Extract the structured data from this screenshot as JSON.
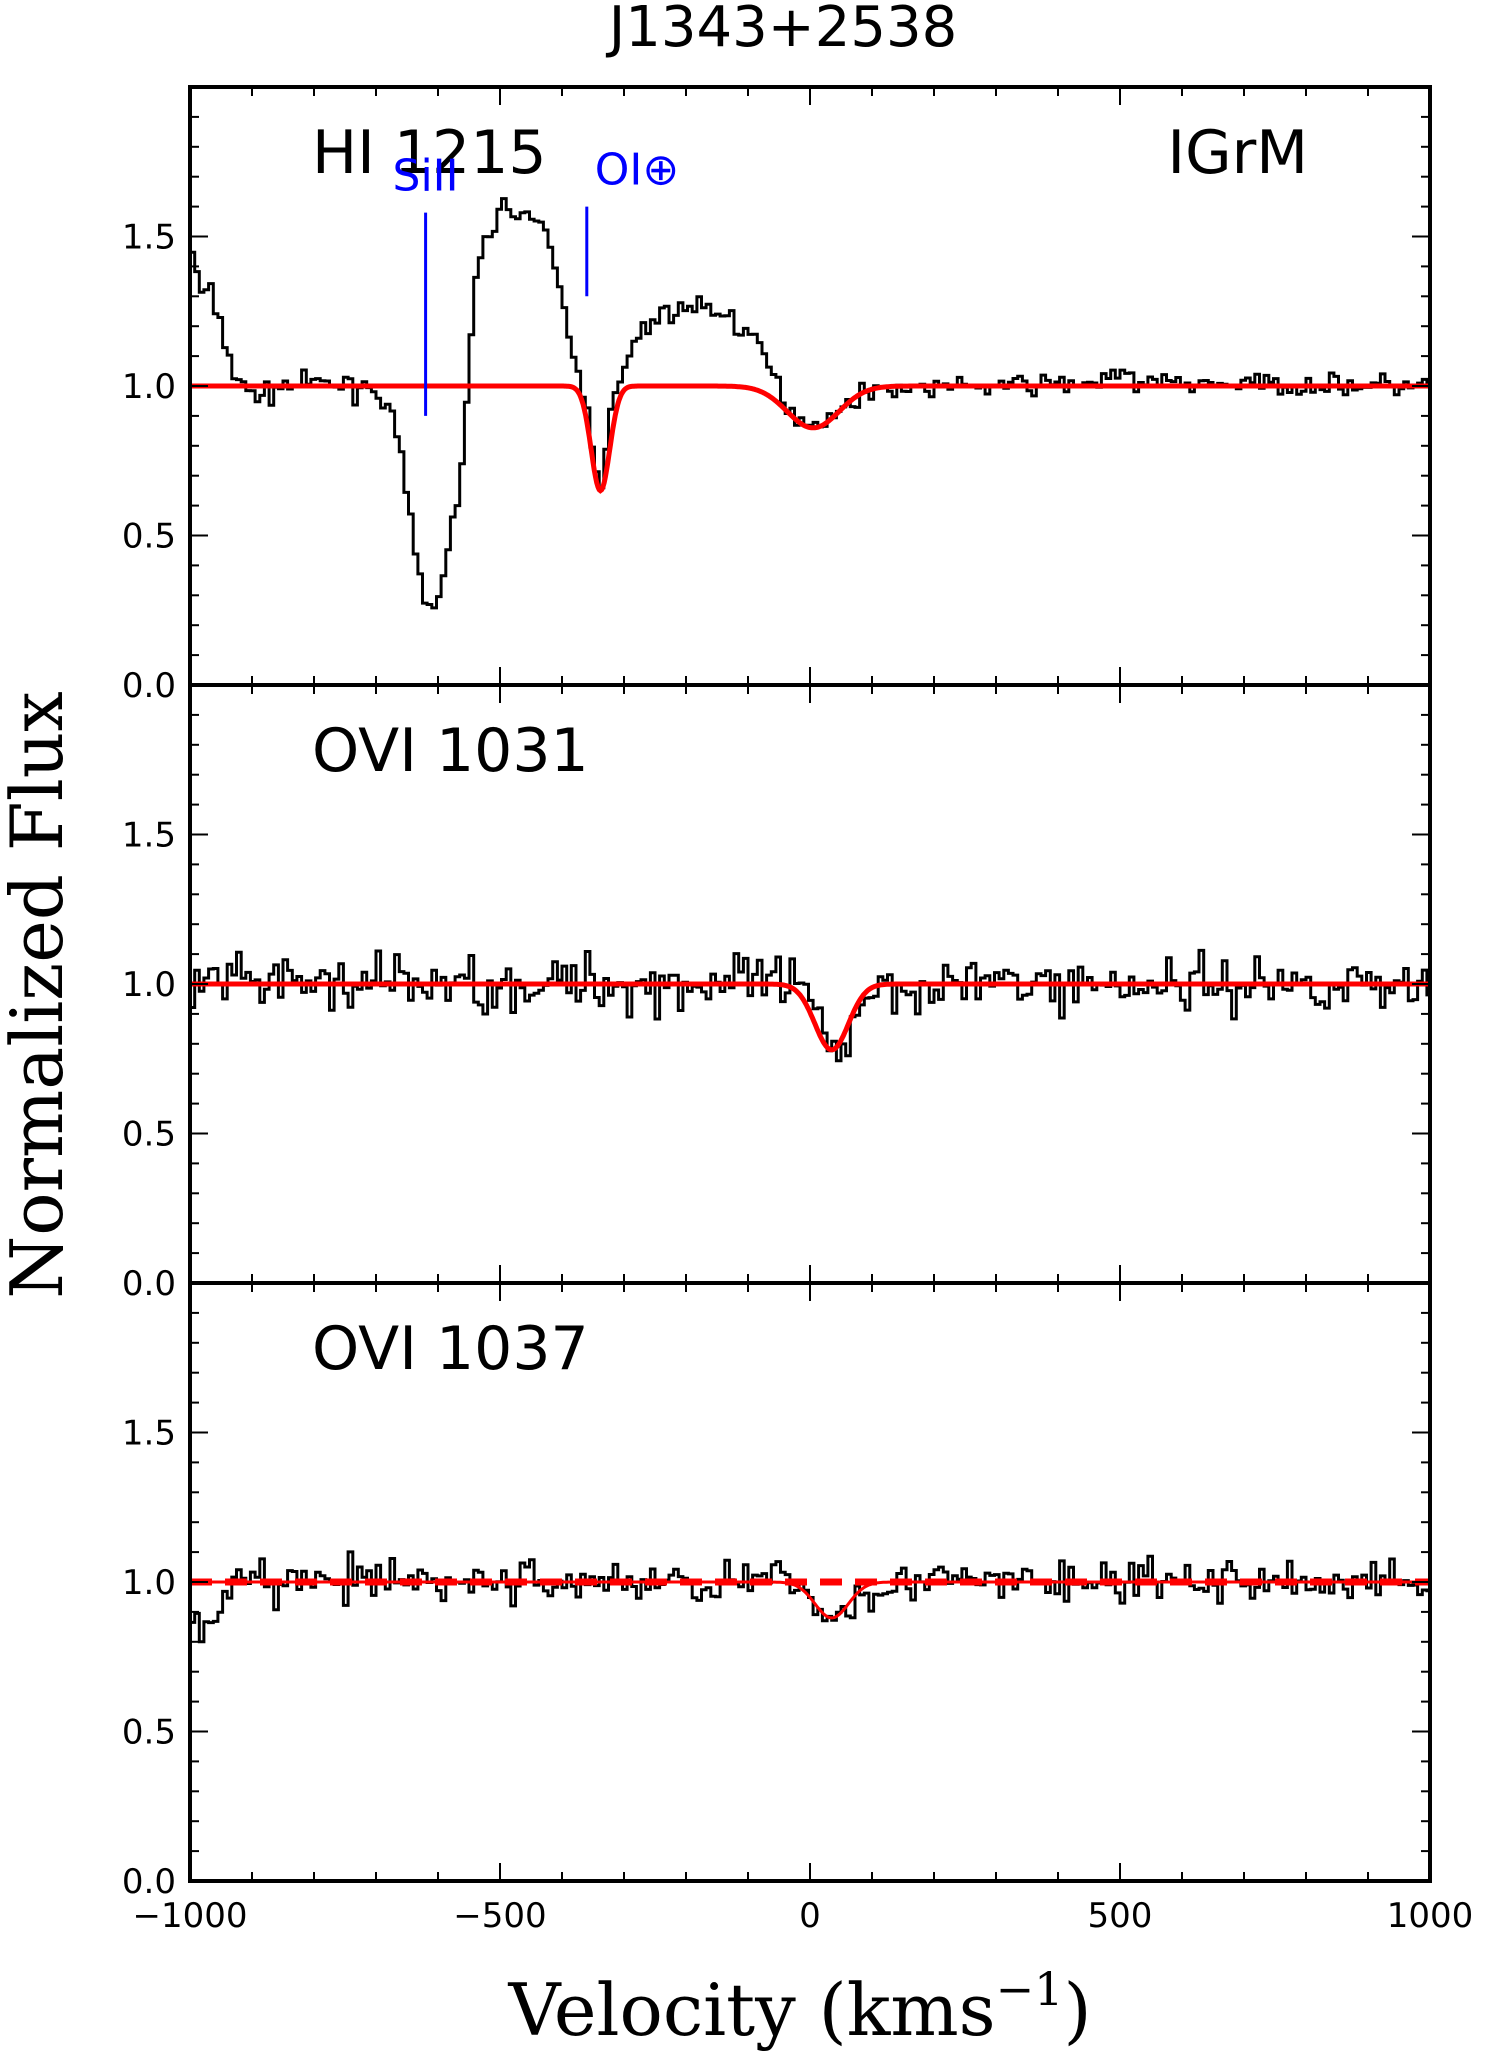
{
  "chart_data": {
    "type": "line",
    "title": "J1343+2538",
    "xlabel": "Velocity (kms",
    "xlabel_exp": "−1",
    "xlabel_close": ")",
    "ylabel": "Normalized Flux",
    "xlim": [
      -1000,
      1000
    ],
    "ylim": [
      0.0,
      2.0
    ],
    "xticks": [
      -1000,
      -500,
      0,
      500,
      1000
    ],
    "xtick_labels": [
      "−1000",
      "−500",
      "0",
      "500",
      "1000"
    ],
    "yticks": [
      0.0,
      0.5,
      1.0,
      1.5
    ],
    "ytick_labels": [
      "0.0",
      "0.5",
      "1.0",
      "1.5"
    ],
    "panels": [
      {
        "label": "HI 1215",
        "tag": "IGrM",
        "markers": [
          {
            "label": "SiII",
            "x": -620,
            "y_top": 1.58,
            "y_bottom": 0.9
          },
          {
            "label": "OI⊕",
            "x": -360,
            "y_top": 1.6,
            "y_bottom": 1.3
          }
        ],
        "data_profile": [
          [
            -1000,
            1.5
          ],
          [
            -985,
            1.32
          ],
          [
            -965,
            1.3
          ],
          [
            -950,
            1.2
          ],
          [
            -930,
            1.05
          ],
          [
            -910,
            0.98
          ],
          [
            -880,
            0.97
          ],
          [
            -850,
            1.0
          ],
          [
            -800,
            1.01
          ],
          [
            -750,
            1.0
          ],
          [
            -715,
            1.0
          ],
          [
            -700,
            0.99
          ],
          [
            -680,
            0.93
          ],
          [
            -665,
            0.82
          ],
          [
            -650,
            0.62
          ],
          [
            -635,
            0.42
          ],
          [
            -622,
            0.28
          ],
          [
            -612,
            0.25
          ],
          [
            -600,
            0.3
          ],
          [
            -585,
            0.43
          ],
          [
            -570,
            0.6
          ],
          [
            -558,
            0.8
          ],
          [
            -550,
            1.05
          ],
          [
            -543,
            1.25
          ],
          [
            -535,
            1.4
          ],
          [
            -520,
            1.52
          ],
          [
            -500,
            1.58
          ],
          [
            -480,
            1.6
          ],
          [
            -460,
            1.58
          ],
          [
            -440,
            1.55
          ],
          [
            -420,
            1.46
          ],
          [
            -400,
            1.3
          ],
          [
            -385,
            1.12
          ],
          [
            -372,
            1.02
          ],
          [
            -360,
            0.95
          ],
          [
            -348,
            0.78
          ],
          [
            -338,
            0.66
          ],
          [
            -328,
            0.78
          ],
          [
            -318,
            0.95
          ],
          [
            -305,
            1.02
          ],
          [
            -290,
            1.1
          ],
          [
            -270,
            1.18
          ],
          [
            -250,
            1.23
          ],
          [
            -220,
            1.25
          ],
          [
            -180,
            1.27
          ],
          [
            -150,
            1.25
          ],
          [
            -120,
            1.22
          ],
          [
            -95,
            1.16
          ],
          [
            -75,
            1.1
          ],
          [
            -55,
            1.02
          ],
          [
            -35,
            0.93
          ],
          [
            -15,
            0.89
          ],
          [
            5,
            0.88
          ],
          [
            25,
            0.89
          ],
          [
            45,
            0.9
          ],
          [
            70,
            0.96
          ],
          [
            100,
            0.99
          ],
          [
            300,
            1.0
          ],
          [
            450,
            1.01
          ],
          [
            500,
            1.03
          ],
          [
            550,
            1.01
          ],
          [
            1000,
            1.0
          ]
        ],
        "fit_components": [
          {
            "center": -338,
            "depth": 0.35,
            "sigma": 15
          },
          {
            "center": 5,
            "depth": 0.14,
            "sigma": 42
          }
        ]
      },
      {
        "label": "OVI 1031",
        "noise_sigma": 0.065,
        "data_profile": [
          [
            -1000,
            0.82
          ],
          [
            -990,
            1.0
          ],
          [
            1000,
            1.0
          ]
        ],
        "fit_components": [
          {
            "center": 35,
            "depth": 0.22,
            "sigma": 27
          }
        ]
      },
      {
        "label": "OVI 1037",
        "noise_sigma": 0.05,
        "dashed_fit": true,
        "data_profile": [
          [
            -1000,
            0.85
          ],
          [
            -970,
            0.9
          ],
          [
            -940,
            0.95
          ],
          [
            -920,
            1.0
          ],
          [
            1000,
            1.0
          ]
        ],
        "fit_components": [
          {
            "center": 35,
            "depth": 0.12,
            "sigma": 27
          }
        ]
      }
    ],
    "data_color": "#000000",
    "fit_color": "#ff0000",
    "marker_color": "#0000ff"
  }
}
